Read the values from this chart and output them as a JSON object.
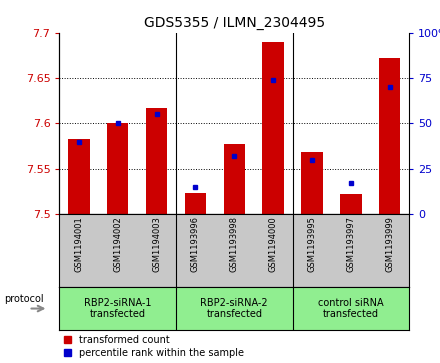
{
  "title": "GDS5355 / ILMN_2304495",
  "samples": [
    "GSM1194001",
    "GSM1194002",
    "GSM1194003",
    "GSM1193996",
    "GSM1193998",
    "GSM1194000",
    "GSM1193995",
    "GSM1193997",
    "GSM1193999"
  ],
  "red_values": [
    7.583,
    7.6,
    7.617,
    7.523,
    7.577,
    7.69,
    7.568,
    7.522,
    7.672
  ],
  "blue_values": [
    40,
    50,
    55,
    15,
    32,
    74,
    30,
    17,
    70
  ],
  "ylim_left": [
    7.5,
    7.7
  ],
  "ylim_right": [
    0,
    100
  ],
  "yticks_left": [
    7.5,
    7.55,
    7.6,
    7.65,
    7.7
  ],
  "yticks_right": [
    0,
    25,
    50,
    75,
    100
  ],
  "group_labels": [
    "RBP2-siRNA-1\ntransfected",
    "RBP2-siRNA-2\ntransfected",
    "control siRNA\ntransfected"
  ],
  "group_separators": [
    2.5,
    5.5
  ],
  "group_centers": [
    1,
    4,
    7
  ],
  "red_color": "#CC0000",
  "blue_color": "#0000CC",
  "bar_base": 7.5,
  "grid_color": "#000000",
  "legend_red": "transformed count",
  "legend_blue": "percentile rank within the sample",
  "protocol_label": "protocol",
  "tick_label_bg": "#C8C8C8",
  "group_bg": "#90EE90",
  "bar_width": 0.55,
  "title_fontsize": 10,
  "tick_fontsize": 8,
  "sample_fontsize": 6,
  "group_fontsize": 7,
  "legend_fontsize": 7
}
